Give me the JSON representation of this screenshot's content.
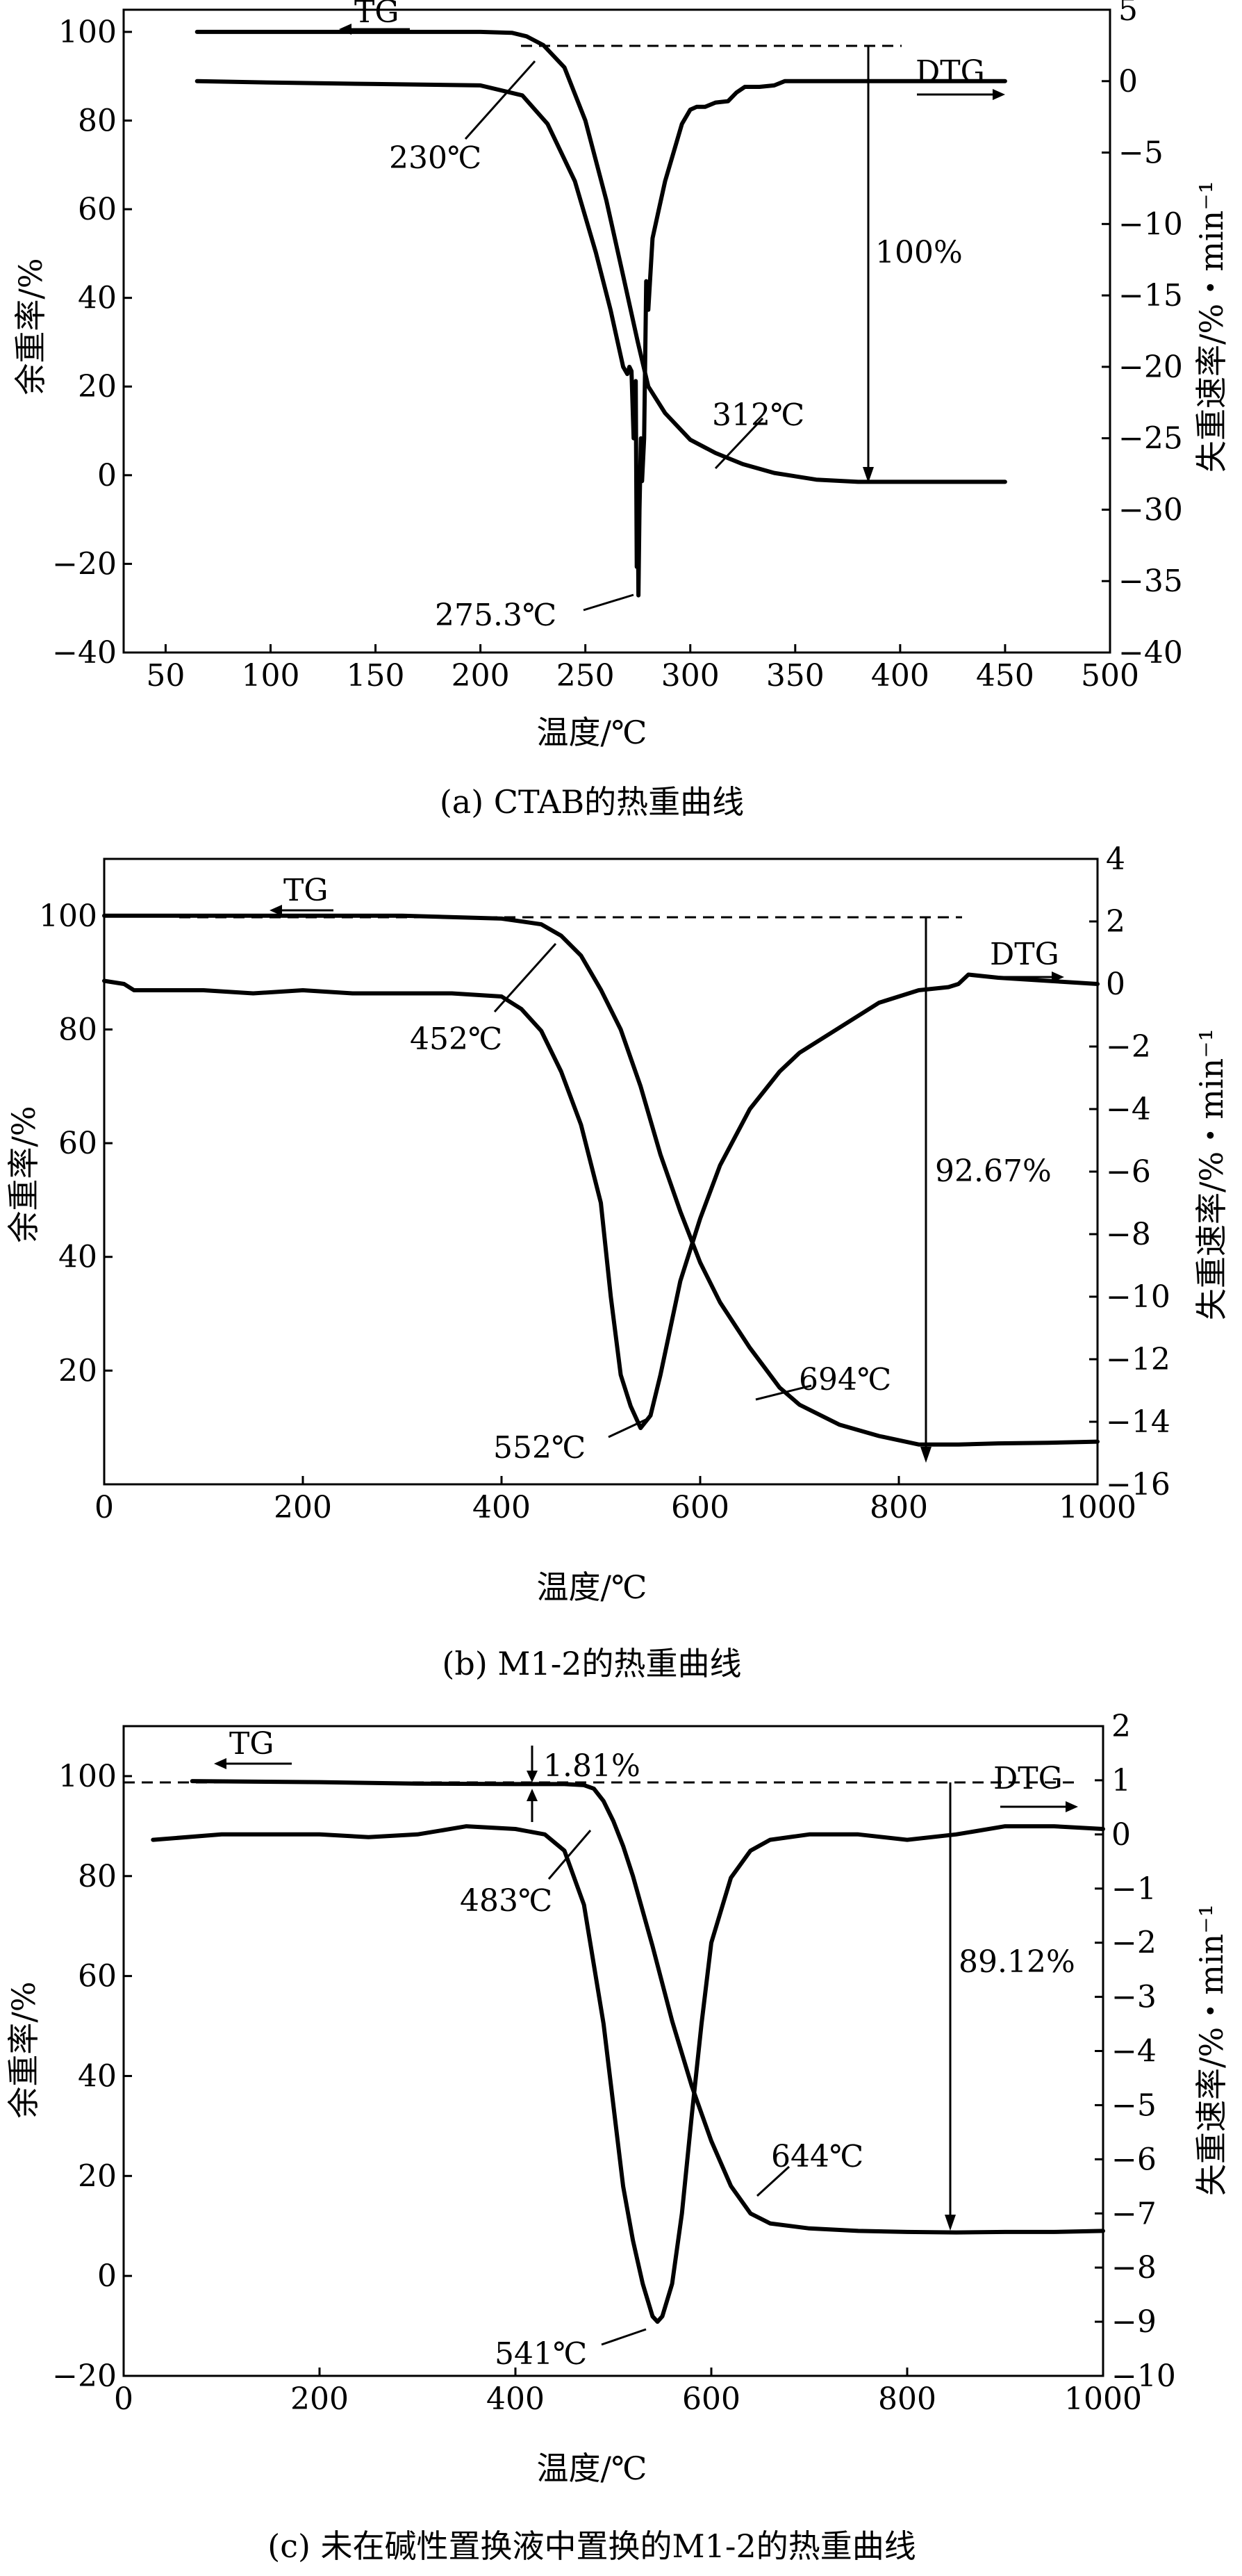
{
  "chart_data": [
    {
      "type": "line",
      "caption": "(a) CTAB的热重曲线",
      "xlabel": "温度/℃",
      "ylabel": "余重率/%",
      "y2label": "失重速率/%・min⁻¹",
      "xlim": [
        30,
        500
      ],
      "ylim": [
        -40,
        105
      ],
      "y2lim": [
        -40,
        5
      ],
      "xticks": [
        50,
        100,
        150,
        200,
        250,
        300,
        350,
        400,
        450,
        500
      ],
      "yticks": [
        -40,
        -20,
        0,
        20,
        40,
        60,
        80,
        100
      ],
      "y2ticks": [
        5,
        0,
        -5,
        -10,
        -15,
        -20,
        -25,
        -30,
        -35,
        -40
      ],
      "series": [
        {
          "name": "TG",
          "axis": "left",
          "x": [
            65,
            150,
            200,
            215,
            222,
            230,
            240,
            250,
            260,
            268,
            275,
            280,
            288,
            300,
            312,
            325,
            340,
            360,
            380,
            400,
            425,
            450
          ],
          "y": [
            100,
            100,
            100,
            99.8,
            99,
            97,
            92,
            80,
            62,
            45,
            30,
            20,
            14,
            8,
            5,
            2.5,
            0.5,
            -1,
            -1.5,
            -1.5,
            -1.5,
            -1.5
          ]
        },
        {
          "name": "DTG",
          "axis": "right",
          "x": [
            65,
            100,
            150,
            200,
            220,
            232,
            245,
            255,
            262,
            268,
            270,
            271,
            272,
            273,
            274,
            274.5,
            275,
            275.3,
            275.8,
            276.5,
            277,
            278,
            279,
            280,
            282,
            285,
            288,
            292,
            296,
            300,
            303,
            307,
            312,
            318,
            322,
            326,
            333,
            340,
            345,
            355,
            360,
            380,
            400,
            420,
            450
          ],
          "y": [
            0,
            -0.1,
            -0.2,
            -0.3,
            -1,
            -3,
            -7,
            -12,
            -16,
            -20,
            -20.5,
            -20,
            -20.3,
            -25,
            -21,
            -34,
            -30,
            -36,
            -30,
            -25,
            -28,
            -25,
            -14,
            -16,
            -11,
            -9,
            -7,
            -5,
            -3,
            -2,
            -1.8,
            -1.8,
            -1.5,
            -1.4,
            -0.8,
            -0.4,
            -0.4,
            -0.3,
            0,
            0,
            0,
            0,
            0,
            0,
            0
          ]
        }
      ],
      "legend": {
        "tg": "TG",
        "dtg": "DTG"
      },
      "annotations": {
        "tg_onset": "230℃",
        "tg_end": "312℃",
        "dtg_peak": "275.3℃",
        "mass_loss": "100%"
      }
    },
    {
      "type": "line",
      "caption": "(b) M1-2的热重曲线",
      "xlabel": "温度/℃",
      "ylabel": "余重率/%",
      "y2label": "失重速率/%・min⁻¹",
      "xlim": [
        0,
        1000
      ],
      "ylim": [
        0,
        110
      ],
      "y2lim": [
        -16,
        4
      ],
      "xticks": [
        0,
        200,
        400,
        600,
        800,
        1000
      ],
      "yticks": [
        20,
        40,
        60,
        80,
        100
      ],
      "y2ticks": [
        4,
        2,
        0,
        -2,
        -4,
        -6,
        -8,
        -10,
        -12,
        -14,
        -16
      ],
      "series": [
        {
          "name": "TG",
          "axis": "left",
          "x": [
            0,
            100,
            200,
            300,
            400,
            440,
            460,
            480,
            500,
            520,
            540,
            560,
            580,
            600,
            620,
            650,
            680,
            700,
            740,
            780,
            820,
            860,
            900,
            950,
            1000
          ],
          "y": [
            100,
            100,
            100,
            100,
            99.5,
            98.5,
            96.5,
            93,
            87,
            80,
            70,
            58,
            48,
            39,
            32,
            24,
            17,
            14,
            10.5,
            8.5,
            7,
            7,
            7.2,
            7.3,
            7.5
          ]
        },
        {
          "name": "DTG",
          "axis": "right",
          "x": [
            0,
            20,
            30,
            50,
            100,
            150,
            200,
            250,
            300,
            350,
            400,
            420,
            440,
            460,
            480,
            500,
            510,
            520,
            530,
            540,
            550,
            560,
            570,
            580,
            600,
            620,
            650,
            680,
            700,
            720,
            750,
            780,
            800,
            820,
            850,
            860,
            870,
            900,
            950,
            1000
          ],
          "y": [
            0.1,
            0,
            -0.2,
            -0.2,
            -0.2,
            -0.3,
            -0.2,
            -0.3,
            -0.3,
            -0.3,
            -0.4,
            -0.8,
            -1.5,
            -2.8,
            -4.5,
            -7,
            -10,
            -12.5,
            -13.5,
            -14.2,
            -13.8,
            -12.5,
            -11,
            -9.5,
            -7.5,
            -5.8,
            -4,
            -2.8,
            -2.2,
            -1.8,
            -1.2,
            -0.6,
            -0.4,
            -0.2,
            -0.1,
            0,
            0.3,
            0.2,
            0.1,
            0
          ]
        }
      ],
      "legend": {
        "tg": "TG",
        "dtg": "DTG"
      },
      "annotations": {
        "tg_onset": "452℃",
        "tg_end": "694℃",
        "dtg_peak": "552℃",
        "mass_loss": "92.67%"
      }
    },
    {
      "type": "line",
      "caption": "(c) 未在碱性置换液中置换的M1-2的热重曲线",
      "xlabel": "温度/℃",
      "ylabel": "余重率/%",
      "y2label": "失重速率/%・min⁻¹",
      "xlim": [
        0,
        1000
      ],
      "ylim": [
        -20,
        110
      ],
      "y2lim": [
        -10,
        2
      ],
      "xticks": [
        0,
        200,
        400,
        600,
        800,
        1000
      ],
      "yticks": [
        -20,
        0,
        20,
        40,
        60,
        80,
        100
      ],
      "y2ticks": [
        2,
        1,
        0,
        -1,
        -2,
        -3,
        -4,
        -5,
        -6,
        -7,
        -8,
        -9,
        -10
      ],
      "series": [
        {
          "name": "TG",
          "axis": "left",
          "x": [
            70,
            200,
            300,
            400,
            450,
            470,
            480,
            490,
            500,
            510,
            520,
            540,
            560,
            580,
            600,
            620,
            640,
            660,
            700,
            750,
            800,
            850,
            900,
            950,
            1000
          ],
          "y": [
            99,
            98.8,
            98.5,
            98.4,
            98.4,
            98.2,
            97.5,
            95,
            91,
            86,
            80,
            66,
            51,
            38,
            27,
            18,
            12.5,
            10.5,
            9.5,
            9,
            8.8,
            8.7,
            8.8,
            8.8,
            9
          ]
        },
        {
          "name": "DTG",
          "axis": "right",
          "x": [
            30,
            100,
            150,
            200,
            250,
            300,
            350,
            400,
            430,
            450,
            470,
            490,
            500,
            510,
            520,
            530,
            540,
            545,
            550,
            560,
            570,
            580,
            590,
            600,
            620,
            640,
            660,
            700,
            750,
            800,
            850,
            900,
            950,
            1000
          ],
          "y": [
            -0.1,
            0,
            0,
            0,
            -0.05,
            0,
            0.15,
            0.1,
            0,
            -0.3,
            -1.3,
            -3.5,
            -5,
            -6.5,
            -7.5,
            -8.3,
            -8.9,
            -9,
            -8.9,
            -8.3,
            -7,
            -5.2,
            -3.5,
            -2,
            -0.8,
            -0.3,
            -0.1,
            0,
            0,
            -0.1,
            0,
            0.15,
            0.15,
            0.1
          ]
        }
      ],
      "legend": {
        "tg": "TG",
        "dtg": "DTG"
      },
      "annotations": {
        "tg_onset": "483℃",
        "tg_end": "644℃",
        "dtg_peak": "541℃",
        "mass_loss": "89.12%",
        "initial_loss": "1.81%"
      }
    }
  ]
}
